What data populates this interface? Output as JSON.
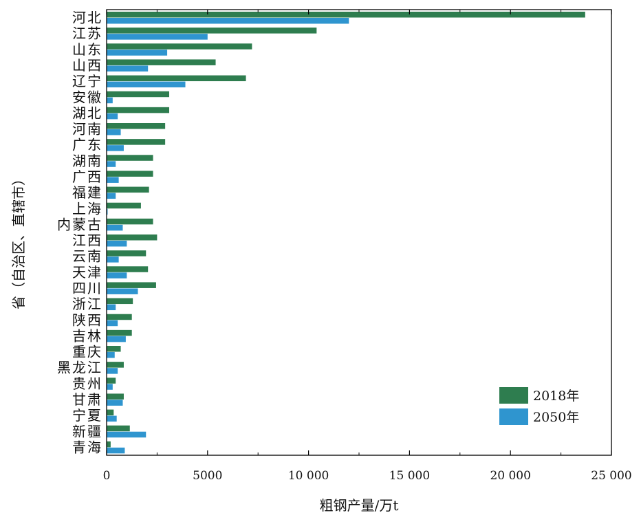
{
  "chart_data": {
    "type": "bar",
    "orientation": "horizontal",
    "xlabel": "粗钢产量/万t",
    "ylabel": "省（自治区、直辖市）",
    "xlim": [
      0,
      25000
    ],
    "x_ticks": [
      0,
      5000,
      10000,
      15000,
      20000,
      25000
    ],
    "x_tick_labels": [
      "0",
      "5000",
      "10 000",
      "15 000",
      "20 000",
      "25 000"
    ],
    "grid": false,
    "legend_position": "bottom-right",
    "categories": [
      "河北",
      "江苏",
      "山东",
      "山西",
      "辽宁",
      "安徽",
      "湖北",
      "河南",
      "广东",
      "湖南",
      "广西",
      "福建",
      "上海",
      "内蒙古",
      "江西",
      "云南",
      "天津",
      "四川",
      "浙江",
      "陕西",
      "吉林",
      "重庆",
      "黑龙江",
      "贵州",
      "甘肃",
      "宁夏",
      "新疆",
      "青海"
    ],
    "series": [
      {
        "name": "2018年",
        "color": "#2e7d4f",
        "values": [
          23700,
          10400,
          7200,
          5400,
          6900,
          3100,
          3100,
          2900,
          2900,
          2300,
          2300,
          2100,
          1700,
          2300,
          2500,
          1950,
          2050,
          2450,
          1300,
          1250,
          1250,
          700,
          850,
          450,
          850,
          350,
          1150,
          200
        ]
      },
      {
        "name": "2050年",
        "color": "#2f95cf",
        "values": [
          12000,
          5000,
          3000,
          2050,
          3900,
          300,
          550,
          700,
          850,
          450,
          600,
          450,
          50,
          800,
          1000,
          600,
          1000,
          1550,
          450,
          550,
          950,
          400,
          550,
          300,
          800,
          500,
          1950,
          900
        ]
      }
    ]
  }
}
